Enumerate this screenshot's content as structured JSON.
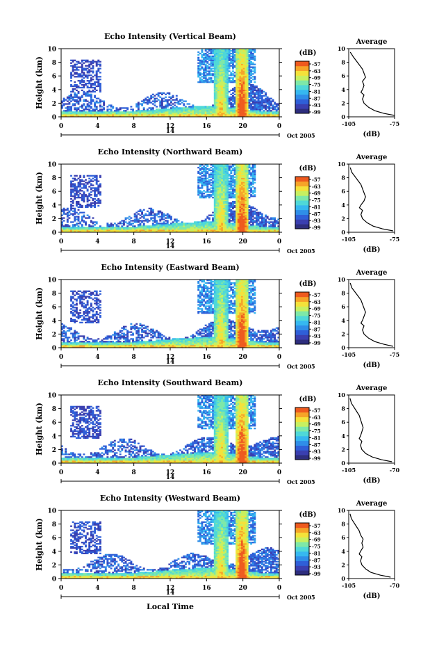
{
  "chart_data": [
    {
      "type": "heatmap",
      "title": "Echo Intensity (Vertical Beam)",
      "ylabel": "Height (km)",
      "xlabel": "",
      "x_ticks": [
        "0",
        "4",
        "8",
        "12",
        "16",
        "20",
        "0"
      ],
      "y_ticks": [
        "0",
        "2",
        "4",
        "6",
        "8",
        "10"
      ],
      "xlim": [
        0,
        24
      ],
      "ylim": [
        0,
        10
      ],
      "date_label": "14",
      "month_label": "Oct 2005",
      "colorbar": {
        "unit": "(dB)",
        "ticks": [
          "-57",
          "-63",
          "-69",
          "-75",
          "-81",
          "-87",
          "-93",
          "-99"
        ]
      },
      "profile": {
        "title": "Average",
        "xlabel": "(dB)",
        "x_ticks": [
          "-105",
          "-75"
        ],
        "xlim": [
          -105,
          -75
        ],
        "y_ticks": [
          "0",
          "2",
          "4",
          "6",
          "8",
          "10"
        ],
        "ylim": [
          0,
          10
        ],
        "values": [
          [
            -75,
            0.2
          ],
          [
            -82,
            0.5
          ],
          [
            -88,
            0.9
          ],
          [
            -92,
            1.4
          ],
          [
            -95,
            2.0
          ],
          [
            -96,
            2.6
          ],
          [
            -95,
            3.2
          ],
          [
            -97,
            3.6
          ],
          [
            -96,
            4.0
          ],
          [
            -95,
            4.6
          ],
          [
            -96,
            5.2
          ],
          [
            -94,
            5.8
          ],
          [
            -95,
            6.4
          ],
          [
            -96,
            7.0
          ],
          [
            -98,
            7.6
          ],
          [
            -100,
            8.2
          ],
          [
            -102,
            8.8
          ],
          [
            -104,
            9.5
          ]
        ]
      }
    },
    {
      "type": "heatmap",
      "title": "Echo Intensity (Northward Beam)",
      "ylabel": "Height (km)",
      "xlabel": "",
      "x_ticks": [
        "0",
        "4",
        "8",
        "12",
        "16",
        "20",
        "0"
      ],
      "y_ticks": [
        "0",
        "2",
        "4",
        "6",
        "8",
        "10"
      ],
      "xlim": [
        0,
        24
      ],
      "ylim": [
        0,
        10
      ],
      "date_label": "14",
      "month_label": "Oct 2005",
      "colorbar": {
        "unit": "(dB)",
        "ticks": [
          "-57",
          "-63",
          "-69",
          "-75",
          "-81",
          "-87",
          "-93",
          "-99"
        ]
      },
      "profile": {
        "title": "Average",
        "xlabel": "(dB)",
        "x_ticks": [
          "-105",
          "-75"
        ],
        "xlim": [
          -105,
          -75
        ],
        "y_ticks": [
          "0",
          "2",
          "4",
          "6",
          "8",
          "10"
        ],
        "ylim": [
          0,
          10
        ],
        "values": [
          [
            -76,
            0.2
          ],
          [
            -83,
            0.5
          ],
          [
            -89,
            0.9
          ],
          [
            -93,
            1.4
          ],
          [
            -96,
            2.0
          ],
          [
            -97,
            2.6
          ],
          [
            -96,
            3.2
          ],
          [
            -98,
            3.6
          ],
          [
            -97,
            4.0
          ],
          [
            -95,
            4.6
          ],
          [
            -94,
            5.2
          ],
          [
            -95,
            5.8
          ],
          [
            -96,
            6.4
          ],
          [
            -97,
            7.0
          ],
          [
            -99,
            7.6
          ],
          [
            -101,
            8.2
          ],
          [
            -103,
            8.8
          ],
          [
            -104,
            9.5
          ]
        ]
      }
    },
    {
      "type": "heatmap",
      "title": "Echo Intensity (Eastward Beam)",
      "ylabel": "Height (km)",
      "xlabel": "",
      "x_ticks": [
        "0",
        "4",
        "8",
        "12",
        "16",
        "20",
        "0"
      ],
      "y_ticks": [
        "0",
        "2",
        "4",
        "6",
        "8",
        "10"
      ],
      "xlim": [
        0,
        24
      ],
      "ylim": [
        0,
        10
      ],
      "date_label": "14",
      "month_label": "Oct 2005",
      "colorbar": {
        "unit": "(dB)",
        "ticks": [
          "-57",
          "-63",
          "-69",
          "-75",
          "-81",
          "-87",
          "-93",
          "-99"
        ]
      },
      "profile": {
        "title": "Average",
        "xlabel": "(dB)",
        "x_ticks": [
          "-105",
          "-75"
        ],
        "xlim": [
          -105,
          -75
        ],
        "y_ticks": [
          "0",
          "2",
          "4",
          "6",
          "8",
          "10"
        ],
        "ylim": [
          0,
          10
        ],
        "values": [
          [
            -76,
            0.2
          ],
          [
            -82,
            0.5
          ],
          [
            -88,
            0.9
          ],
          [
            -92,
            1.4
          ],
          [
            -95,
            2.0
          ],
          [
            -96,
            2.6
          ],
          [
            -95,
            3.2
          ],
          [
            -97,
            3.6
          ],
          [
            -96,
            4.0
          ],
          [
            -95,
            4.6
          ],
          [
            -94,
            5.2
          ],
          [
            -95,
            5.8
          ],
          [
            -96,
            6.4
          ],
          [
            -97,
            7.0
          ],
          [
            -99,
            7.6
          ],
          [
            -101,
            8.2
          ],
          [
            -103,
            8.8
          ],
          [
            -104,
            9.5
          ]
        ]
      }
    },
    {
      "type": "heatmap",
      "title": "Echo Intensity (Southward Beam)",
      "ylabel": "Height (km)",
      "xlabel": "",
      "x_ticks": [
        "0",
        "4",
        "8",
        "12",
        "16",
        "20",
        "0"
      ],
      "y_ticks": [
        "0",
        "2",
        "4",
        "6",
        "8",
        "10"
      ],
      "xlim": [
        0,
        24
      ],
      "ylim": [
        0,
        10
      ],
      "date_label": "14",
      "month_label": "Oct 2005",
      "colorbar": {
        "unit": "(dB)",
        "ticks": [
          "-57",
          "-63",
          "-69",
          "-75",
          "-81",
          "-87",
          "-93",
          "-99"
        ]
      },
      "profile": {
        "title": "Average",
        "xlabel": "(dB)",
        "x_ticks": [
          "-105",
          "-70"
        ],
        "xlim": [
          -105,
          -70
        ],
        "y_ticks": [
          "0",
          "2",
          "4",
          "6",
          "8",
          "10"
        ],
        "ylim": [
          0,
          10
        ],
        "values": [
          [
            -72,
            0.2
          ],
          [
            -80,
            0.5
          ],
          [
            -87,
            0.9
          ],
          [
            -92,
            1.4
          ],
          [
            -95,
            2.0
          ],
          [
            -96,
            2.6
          ],
          [
            -95,
            3.2
          ],
          [
            -97,
            3.6
          ],
          [
            -96,
            4.0
          ],
          [
            -95,
            4.6
          ],
          [
            -94,
            5.2
          ],
          [
            -95,
            5.8
          ],
          [
            -96,
            6.4
          ],
          [
            -97,
            7.0
          ],
          [
            -99,
            7.6
          ],
          [
            -101,
            8.2
          ],
          [
            -103,
            8.8
          ],
          [
            -104,
            9.5
          ]
        ]
      }
    },
    {
      "type": "heatmap",
      "title": "Echo Intensity (Westward Beam)",
      "ylabel": "Height (km)",
      "xlabel": "Local Time",
      "x_ticks": [
        "0",
        "4",
        "8",
        "12",
        "16",
        "20",
        "0"
      ],
      "y_ticks": [
        "0",
        "2",
        "4",
        "6",
        "8",
        "10"
      ],
      "xlim": [
        0,
        24
      ],
      "ylim": [
        0,
        10
      ],
      "date_label": "14",
      "month_label": "Oct 2005",
      "colorbar": {
        "unit": "(dB)",
        "ticks": [
          "-57",
          "-63",
          "-69",
          "-75",
          "-81",
          "-87",
          "-93",
          "-99"
        ]
      },
      "profile": {
        "title": "Average",
        "xlabel": "(dB)",
        "x_ticks": [
          "-105",
          "-70"
        ],
        "xlim": [
          -105,
          -70
        ],
        "y_ticks": [
          "0",
          "2",
          "4",
          "6",
          "8",
          "10"
        ],
        "ylim": [
          0,
          10
        ],
        "values": [
          [
            -73,
            0.2
          ],
          [
            -81,
            0.5
          ],
          [
            -88,
            0.9
          ],
          [
            -92,
            1.4
          ],
          [
            -95,
            2.0
          ],
          [
            -96,
            2.6
          ],
          [
            -95,
            3.2
          ],
          [
            -97,
            3.6
          ],
          [
            -96,
            4.0
          ],
          [
            -94,
            4.6
          ],
          [
            -95,
            5.2
          ],
          [
            -94,
            5.8
          ],
          [
            -96,
            6.4
          ],
          [
            -97,
            7.0
          ],
          [
            -99,
            7.6
          ],
          [
            -101,
            8.2
          ],
          [
            -103,
            8.8
          ],
          [
            -104,
            9.5
          ]
        ]
      }
    }
  ],
  "colors": {
    "colormap": [
      "#2e2e7e",
      "#3a3fb0",
      "#2f5fd8",
      "#2f8ee8",
      "#36b8f0",
      "#4fd8d8",
      "#7ee8a8",
      "#c8f060",
      "#f4e23a",
      "#f6a428",
      "#ee5a1e"
    ]
  }
}
